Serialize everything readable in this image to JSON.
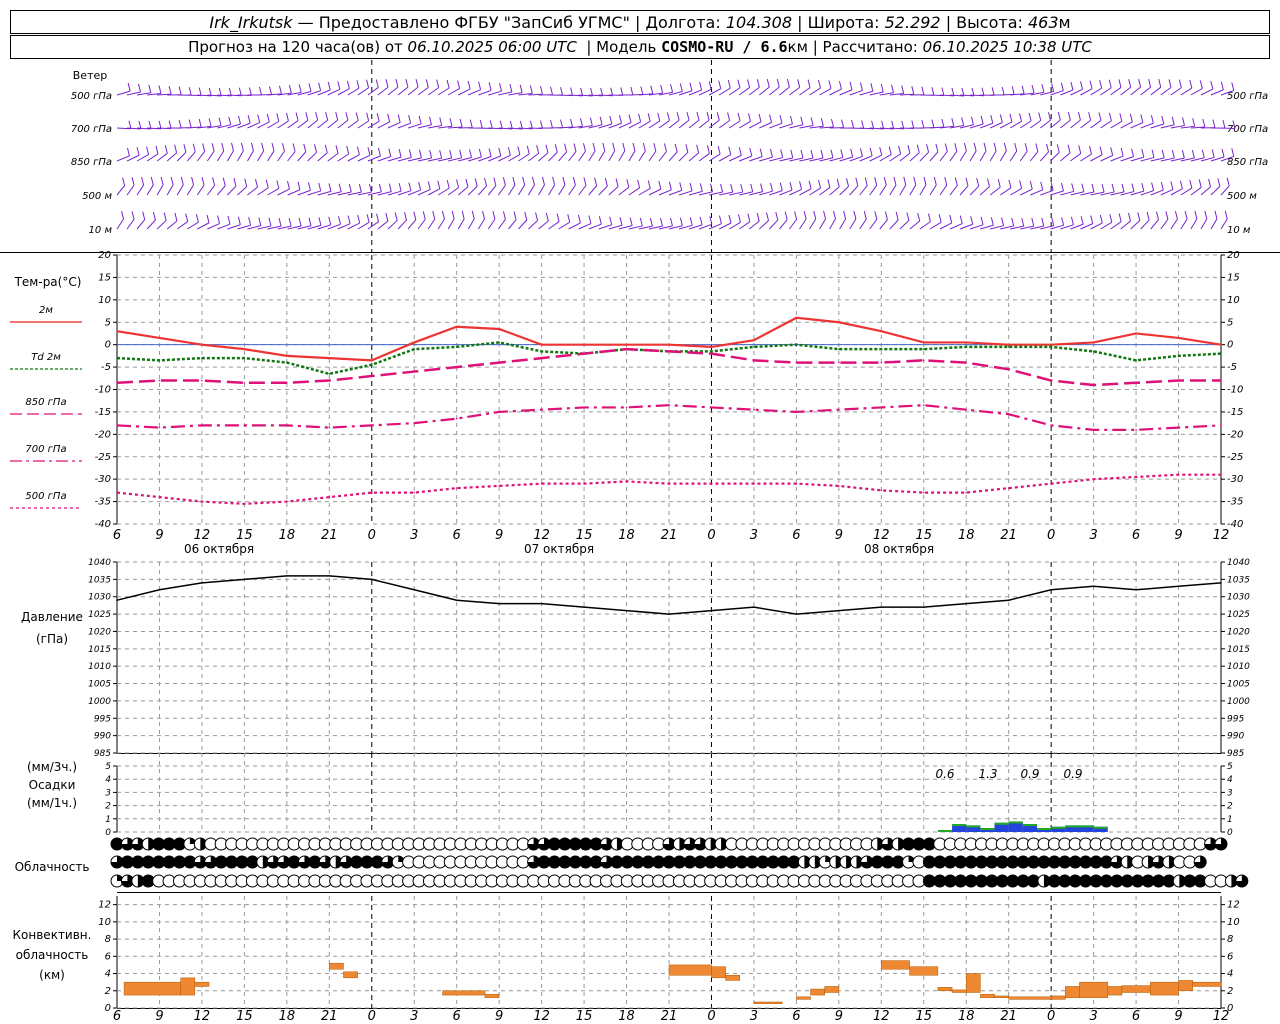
{
  "header": {
    "station": "Irk_Irkutsk",
    "provider": "— Предоставлено ФГБУ \"ЗапСиб УГМС\"",
    "lon_label": "Долгота:",
    "lon": "104.308",
    "lat_label": "Широта:",
    "lat": "52.292",
    "alt_label": "Высота:",
    "alt": "463",
    "alt_unit": "м",
    "forecast_prefix": "Прогноз на 120 часа(ов) от",
    "forecast_start": "06.10.2025 06:00 UTC",
    "model_label": "Модель",
    "model": "COSMO-RU / 6.6",
    "model_unit": "км",
    "calc_label": "Рассчитано:",
    "calc_time": "06.10.2025 10:38 UTC"
  },
  "labels": {
    "wind": "Ветер",
    "temp": "Тем-ра(°C)",
    "pressure": "Давление",
    "pressure_unit": "(гПа)",
    "precip_top": "(мм/3ч.)",
    "precip_mid": "Осадки",
    "precip_bot": "(мм/1ч.)",
    "cloud": "Облачность",
    "conv1": "Конвективн.",
    "conv2": "облачность",
    "conv3": "(км)"
  },
  "wind_levels": [
    "500 гПа",
    "700 гПа",
    "850 гПа",
    "500 м",
    "10  м"
  ],
  "temp_legend": [
    {
      "label": "2м",
      "color": "#ee2222",
      "dash": ""
    },
    {
      "label": "Td  2м",
      "color": "#117711",
      "dash": "3,2"
    },
    {
      "label": "850 гПа",
      "color": "#dd1177",
      "dash": "12,5"
    },
    {
      "label": "700 гПа",
      "color": "#dd1177",
      "dash": "12,4,3,4"
    },
    {
      "label": "500 гПа",
      "color": "#dd1177",
      "dash": "3,3"
    }
  ],
  "date_labels": [
    "06 октября",
    "07 октября",
    "08 октября"
  ],
  "hour_labels": [
    "6",
    "9",
    "12",
    "15",
    "18",
    "21",
    "0",
    "3",
    "6",
    "9",
    "12",
    "15",
    "18",
    "21",
    "0",
    "3",
    "6",
    "9",
    "12",
    "15",
    "18",
    "21",
    "0",
    "3",
    "6",
    "9",
    "12"
  ],
  "colors": {
    "wind": "#7722cc",
    "pressure": "#000000",
    "precip_blue": "#2244dd",
    "precip_green": "#22aa22",
    "convective": "#ee8833",
    "grid": "#999999"
  },
  "chart_data": [
    {
      "type": "line",
      "title": "Тем-ра(°C)",
      "x_hours": [
        0,
        3,
        6,
        9,
        12,
        15,
        18,
        21,
        24,
        27,
        30,
        33,
        36,
        39,
        42,
        45,
        48,
        51,
        54,
        57,
        60,
        63,
        66,
        69,
        72,
        75,
        78
      ],
      "ylim": [
        -40,
        20
      ],
      "yticks": [
        -40,
        -35,
        -30,
        -25,
        -20,
        -15,
        -10,
        -5,
        0,
        5,
        10,
        15,
        20
      ],
      "series": [
        {
          "name": "2м",
          "values": [
            3,
            1.5,
            0,
            -1,
            -2.5,
            -3,
            -3.5,
            0.5,
            4,
            3.5,
            0,
            0,
            0,
            0,
            -0.5,
            1,
            6,
            5,
            3,
            0.5,
            0.5,
            0,
            0,
            0.5,
            2.5,
            1.5,
            0
          ]
        },
        {
          "name": "Td 2м",
          "values": [
            -3,
            -3.5,
            -3,
            -3,
            -4,
            -6.5,
            -4.5,
            -1,
            -0.5,
            0.5,
            -1.5,
            -2,
            -1,
            -1.5,
            -1.5,
            -0.5,
            0,
            -1,
            -1,
            -1,
            -0.5,
            -0.5,
            -0.5,
            -1.5,
            -3.5,
            -2.5,
            -2
          ]
        },
        {
          "name": "850 гПа",
          "values": [
            -8.5,
            -8,
            -8,
            -8.5,
            -8.5,
            -8,
            -7,
            -6,
            -5,
            -4,
            -3,
            -2,
            -1,
            -1.5,
            -2,
            -3.5,
            -4,
            -4,
            -4,
            -3.5,
            -4,
            -5.5,
            -8,
            -9,
            -8.5,
            -8,
            -8
          ]
        },
        {
          "name": "700 гПа",
          "values": [
            -18,
            -18.5,
            -18,
            -18,
            -18,
            -18.5,
            -18,
            -17.5,
            -16.5,
            -15,
            -14.5,
            -14,
            -14,
            -13.5,
            -14,
            -14.5,
            -15,
            -14.5,
            -14,
            -13.5,
            -14.5,
            -15.5,
            -18,
            -19,
            -19,
            -18.5,
            -18
          ]
        },
        {
          "name": "500 гПа",
          "values": [
            -33,
            -34,
            -35,
            -35.5,
            -35,
            -34,
            -33,
            -33,
            -32,
            -31.5,
            -31,
            -31,
            -30.5,
            -31,
            -31,
            -31,
            -31,
            -31.5,
            -32.5,
            -33,
            -33,
            -32,
            -31,
            -30,
            -29.5,
            -29,
            -29
          ]
        }
      ]
    },
    {
      "type": "line",
      "title": "Давление",
      "x_hours": [
        0,
        3,
        6,
        9,
        12,
        15,
        18,
        21,
        24,
        27,
        30,
        33,
        36,
        39,
        42,
        45,
        48,
        51,
        54,
        57,
        60,
        63,
        66,
        69,
        72,
        75,
        78
      ],
      "ylim": [
        985,
        1040
      ],
      "yticks": [
        985,
        990,
        995,
        1000,
        1005,
        1010,
        1015,
        1020,
        1025,
        1030,
        1035,
        1040
      ],
      "series": [
        {
          "name": "Давление",
          "values": [
            1029,
            1032,
            1034,
            1035,
            1036,
            1036,
            1035,
            1032,
            1029,
            1028,
            1028,
            1027,
            1026,
            1025,
            1026,
            1027,
            1025,
            1026,
            1027,
            1027,
            1028,
            1029,
            1032,
            1033,
            1032,
            1033,
            1034
          ]
        }
      ]
    },
    {
      "type": "bar",
      "title": "Осадки",
      "ylim": [
        0,
        5
      ],
      "yticks": [
        0,
        1,
        2,
        3,
        4,
        5
      ],
      "annotations": [
        "0.6",
        "1.3",
        "0.9",
        "0.9"
      ],
      "x_hours": [
        58,
        59,
        60,
        61,
        62,
        63,
        64,
        65,
        66,
        67,
        68,
        69
      ],
      "values": [
        0.15,
        0.6,
        0.5,
        0.3,
        0.7,
        0.8,
        0.6,
        0.3,
        0.4,
        0.5,
        0.5,
        0.4
      ]
    },
    {
      "type": "bar",
      "title": "Конвективн. облачность",
      "ylim": [
        0,
        13
      ],
      "yticks": [
        0,
        2,
        4,
        6,
        8,
        10,
        12
      ],
      "segments": [
        {
          "x0": 0.5,
          "x1": 4.5,
          "base": 1.5,
          "top": 3
        },
        {
          "x0": 4.5,
          "x1": 5.5,
          "base": 1.5,
          "top": 3.5
        },
        {
          "x0": 5.5,
          "x1": 6.5,
          "base": 2.5,
          "top": 3
        },
        {
          "x0": 15,
          "x1": 16,
          "base": 4.5,
          "top": 5.2
        },
        {
          "x0": 16,
          "x1": 17,
          "base": 3.5,
          "top": 4.2
        },
        {
          "x0": 23,
          "x1": 26,
          "base": 1.5,
          "top": 2
        },
        {
          "x0": 26,
          "x1": 27,
          "base": 1.2,
          "top": 1.6
        },
        {
          "x0": 39,
          "x1": 42,
          "base": 3.8,
          "top": 5
        },
        {
          "x0": 42,
          "x1": 43,
          "base": 3.5,
          "top": 4.8
        },
        {
          "x0": 43,
          "x1": 44,
          "base": 3.2,
          "top": 3.8
        },
        {
          "x0": 45,
          "x1": 47,
          "base": 0.5,
          "top": 0.7
        },
        {
          "x0": 48,
          "x1": 49,
          "base": 1,
          "top": 1.3
        },
        {
          "x0": 49,
          "x1": 50,
          "base": 1.5,
          "top": 2.2
        },
        {
          "x0": 50,
          "x1": 51,
          "base": 1.8,
          "top": 2.5
        },
        {
          "x0": 54,
          "x1": 56,
          "base": 4.5,
          "top": 5.5
        },
        {
          "x0": 56,
          "x1": 58,
          "base": 3.8,
          "top": 4.8
        },
        {
          "x0": 58,
          "x1": 59,
          "base": 2,
          "top": 2.4
        },
        {
          "x0": 59,
          "x1": 60,
          "base": 1.8,
          "top": 2.1
        },
        {
          "x0": 60,
          "x1": 61,
          "base": 1.8,
          "top": 4
        },
        {
          "x0": 61,
          "x1": 62,
          "base": 1.2,
          "top": 1.6
        },
        {
          "x0": 62,
          "x1": 63,
          "base": 1.2,
          "top": 1.4
        },
        {
          "x0": 63,
          "x1": 66,
          "base": 1,
          "top": 1.3
        },
        {
          "x0": 66,
          "x1": 67,
          "base": 1,
          "top": 1.4
        },
        {
          "x0": 67,
          "x1": 68,
          "base": 1.2,
          "top": 2.5
        },
        {
          "x0": 68,
          "x1": 70,
          "base": 1.2,
          "top": 3
        },
        {
          "x0": 70,
          "x1": 71,
          "base": 1.5,
          "top": 2.5
        },
        {
          "x0": 71,
          "x1": 73,
          "base": 1.8,
          "top": 2.6
        },
        {
          "x0": 73,
          "x1": 75,
          "base": 1.5,
          "top": 3
        },
        {
          "x0": 75,
          "x1": 76,
          "base": 2,
          "top": 3.2
        },
        {
          "x0": 76,
          "x1": 78,
          "base": 2.5,
          "top": 3
        }
      ]
    },
    {
      "type": "table",
      "title": "Облачность",
      "rows": [
        [
          1,
          0.75,
          0.75,
          0.5,
          1,
          1,
          1,
          0.25,
          0.5,
          0,
          0,
          0,
          0,
          0,
          0,
          0,
          0,
          0,
          0,
          0,
          0,
          0,
          0,
          0,
          0,
          0,
          0,
          0,
          0,
          0,
          0,
          0,
          0,
          0,
          0,
          0,
          0,
          0,
          0,
          0,
          0.75,
          0.75,
          1,
          1,
          1,
          1,
          1,
          0.75,
          0.5,
          0,
          0,
          0,
          0,
          0.75,
          0.5,
          0.75,
          0.75,
          0.5,
          0.5,
          0,
          0,
          0,
          0,
          0,
          0,
          0,
          0,
          0,
          0,
          0,
          0,
          0,
          0,
          0.5,
          0.75,
          0.5,
          1,
          1,
          1,
          0,
          0,
          0,
          0,
          0,
          0,
          0,
          0,
          0,
          0,
          0,
          0,
          0,
          0,
          0,
          0,
          0,
          0,
          0,
          0,
          0,
          0,
          0,
          0,
          0,
          0,
          0.75,
          0.75
        ],
        [
          0.75,
          1,
          1,
          1,
          1,
          1,
          1,
          1,
          0.75,
          0.75,
          1,
          1,
          1,
          1,
          0.5,
          0.75,
          0.75,
          1,
          0.75,
          1,
          0.75,
          0.5,
          0.75,
          1,
          1,
          1,
          0.75,
          0.25,
          0,
          0,
          0,
          0,
          0,
          0,
          0,
          0,
          0,
          0,
          0,
          0,
          0.75,
          1,
          1,
          1,
          1,
          1,
          1,
          0.75,
          1,
          1,
          1,
          1,
          1,
          1,
          1,
          1,
          1,
          1,
          1,
          1,
          1,
          1,
          1,
          1,
          1,
          1,
          0.5,
          0.5,
          0.25,
          0.5,
          0.5,
          0.5,
          0.75,
          1,
          1,
          1,
          0.25,
          0,
          1,
          1,
          1,
          1,
          1,
          1,
          1,
          1,
          1,
          1,
          1,
          1,
          1,
          1,
          1,
          1,
          1,
          1,
          0.75,
          0.5,
          0,
          0.5,
          0.75,
          0.5,
          0,
          0,
          0.75
        ],
        [
          0.25,
          0.75,
          0.5,
          1,
          0,
          0,
          0,
          0,
          0,
          0,
          0,
          0,
          0,
          0,
          0,
          0,
          0,
          0,
          0,
          0,
          0,
          0,
          0,
          0,
          0,
          0,
          0,
          0,
          0,
          0,
          0,
          0,
          0,
          0,
          0,
          0,
          0,
          0,
          0,
          0,
          0,
          0,
          0,
          0,
          0,
          0,
          0,
          0,
          0,
          0,
          0,
          0,
          0,
          0,
          0,
          0,
          0,
          0,
          0,
          0,
          0,
          0,
          0,
          0,
          0,
          0,
          0,
          0,
          0,
          0,
          0,
          0,
          0,
          0,
          0,
          0,
          0,
          0,
          1,
          1,
          1,
          1,
          1,
          1,
          1,
          1,
          1,
          1,
          1,
          0.5,
          1,
          1,
          1,
          1,
          1,
          1,
          1,
          1,
          1,
          1,
          1,
          1,
          0.5,
          1,
          1,
          0,
          0,
          0.5,
          0.75
        ]
      ]
    }
  ]
}
